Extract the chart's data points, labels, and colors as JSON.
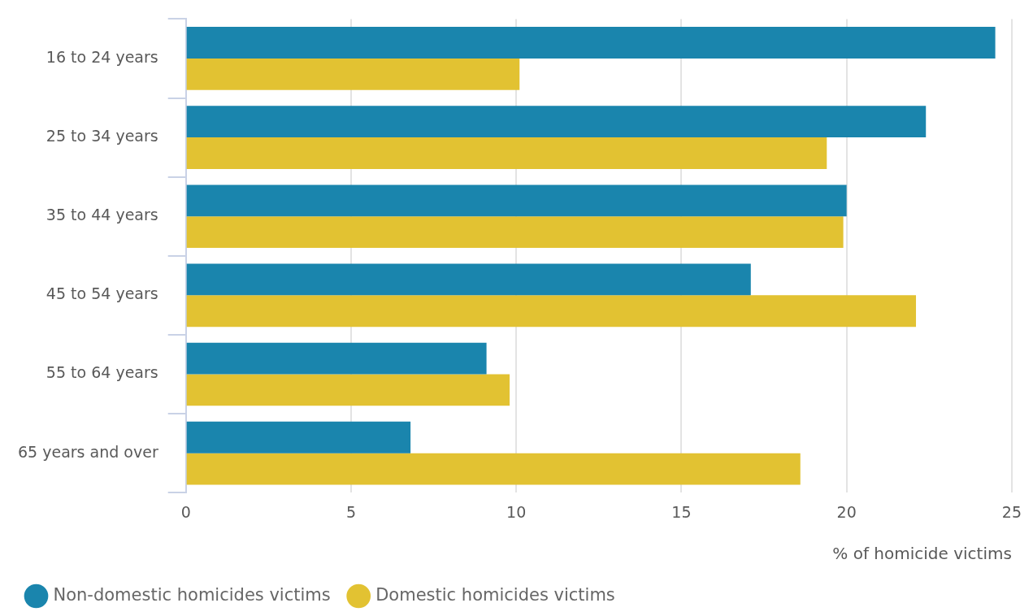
{
  "chart_data": {
    "type": "bar",
    "orientation": "horizontal",
    "xlabel": "% of homicide victims",
    "categories": [
      "16 to 24 years",
      "25 to 34 years",
      "35 to 44 years",
      "45 to 54 years",
      "55 to 64 years",
      "65 years and over"
    ],
    "series": [
      {
        "name": "Non-domestic homicides victims",
        "color": "#1a85ad",
        "values": [
          24.5,
          22.4,
          20.0,
          17.1,
          9.1,
          6.8
        ]
      },
      {
        "name": "Domestic homicides victims",
        "color": "#e2c232",
        "values": [
          10.1,
          19.4,
          19.9,
          22.1,
          9.8,
          18.6
        ]
      }
    ],
    "xlim": [
      0,
      25
    ],
    "xticks": [
      0,
      5,
      10,
      15,
      20,
      25
    ],
    "grid": "x",
    "legend": "bottom left"
  }
}
